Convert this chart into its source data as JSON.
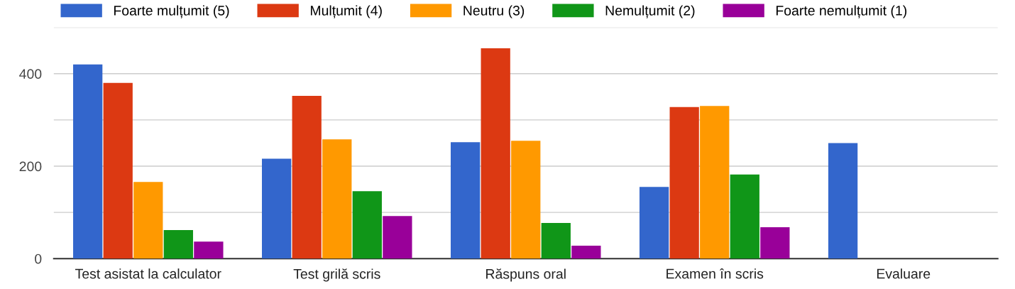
{
  "chart_data": {
    "type": "bar",
    "categories": [
      "Test asistat la calculator",
      "Test grilă scris",
      "Răspuns oral",
      "Examen în scris",
      "Evaluare"
    ],
    "series": [
      {
        "name": "Foarte mulțumit (5)",
        "color": "#3366cc",
        "values": [
          420,
          216,
          252,
          155,
          250
        ]
      },
      {
        "name": "Mulțumit (4)",
        "color": "#dc3912",
        "values": [
          380,
          352,
          455,
          328,
          null
        ]
      },
      {
        "name": "Neutru (3)",
        "color": "#ff9900",
        "values": [
          166,
          258,
          255,
          330,
          null
        ]
      },
      {
        "name": "Nemulțumit (2)",
        "color": "#109618",
        "values": [
          62,
          146,
          77,
          182,
          null
        ]
      },
      {
        "name": "Foarte nemulțumit (1)",
        "color": "#990099",
        "values": [
          37,
          92,
          28,
          68,
          null
        ]
      }
    ],
    "ylim": [
      0,
      500
    ],
    "yticks": [
      0,
      {
        "value": 100,
        "label": null
      },
      200,
      {
        "value": 300,
        "label": null
      },
      400,
      {
        "value": 500,
        "label": null
      }
    ],
    "grid": "y",
    "legend": "top"
  }
}
